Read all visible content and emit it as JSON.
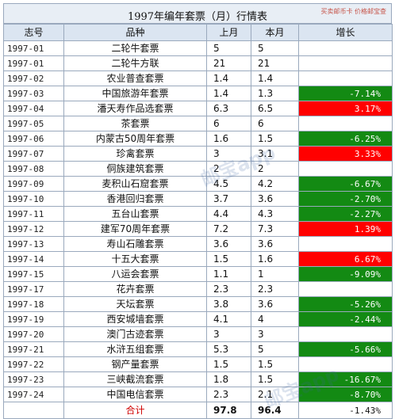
{
  "title": "1997年编年套票（月）行情表",
  "stamp": "买卖邮币卡 价格邮宝查",
  "watermark": "邮宝app",
  "colors": {
    "down": "#138a13",
    "up": "#ff0000",
    "header_bg": "#dbe5f1",
    "total_label": "#d00000"
  },
  "columns": [
    "志号",
    "品种",
    "上月",
    "本月",
    "增长"
  ],
  "rows": [
    {
      "code": "1997-01",
      "name": "二轮牛套票",
      "prev": "5",
      "curr": "5",
      "change": "",
      "trend": ""
    },
    {
      "code": "1997-01",
      "name": "二轮牛方联",
      "prev": "21",
      "curr": "21",
      "change": "",
      "trend": ""
    },
    {
      "code": "1997-02",
      "name": "农业普查套票",
      "prev": "1.4",
      "curr": "1.4",
      "change": "",
      "trend": ""
    },
    {
      "code": "1997-03",
      "name": "中国旅游年套票",
      "prev": "1.4",
      "curr": "1.3",
      "change": "-7.14%",
      "trend": "neg"
    },
    {
      "code": "1997-04",
      "name": "潘天寿作品选套票",
      "prev": "6.3",
      "curr": "6.5",
      "change": "3.17%",
      "trend": "pos"
    },
    {
      "code": "1997-05",
      "name": "茶套票",
      "prev": "6",
      "curr": "6",
      "change": "",
      "trend": ""
    },
    {
      "code": "1997-06",
      "name": "内蒙古50周年套票",
      "prev": "1.6",
      "curr": "1.5",
      "change": "-6.25%",
      "trend": "neg"
    },
    {
      "code": "1997-07",
      "name": "珍禽套票",
      "prev": "3",
      "curr": "3.1",
      "change": "3.33%",
      "trend": "pos"
    },
    {
      "code": "1997-08",
      "name": "侗族建筑套票",
      "prev": "2",
      "curr": "2",
      "change": "",
      "trend": ""
    },
    {
      "code": "1997-09",
      "name": "麦积山石窟套票",
      "prev": "4.5",
      "curr": "4.2",
      "change": "-6.67%",
      "trend": "neg"
    },
    {
      "code": "1997-10",
      "name": "香港回归套票",
      "prev": "3.7",
      "curr": "3.6",
      "change": "-2.70%",
      "trend": "neg"
    },
    {
      "code": "1997-11",
      "name": "五台山套票",
      "prev": "4.4",
      "curr": "4.3",
      "change": "-2.27%",
      "trend": "neg"
    },
    {
      "code": "1997-12",
      "name": "建军70周年套票",
      "prev": "7.2",
      "curr": "7.3",
      "change": "1.39%",
      "trend": "pos"
    },
    {
      "code": "1997-13",
      "name": "寿山石雕套票",
      "prev": "3.6",
      "curr": "3.6",
      "change": "",
      "trend": ""
    },
    {
      "code": "1997-14",
      "name": "十五大套票",
      "prev": "1.5",
      "curr": "1.6",
      "change": "6.67%",
      "trend": "pos"
    },
    {
      "code": "1997-15",
      "name": "八运会套票",
      "prev": "1.1",
      "curr": "1",
      "change": "-9.09%",
      "trend": "neg"
    },
    {
      "code": "1997-17",
      "name": "花卉套票",
      "prev": "2.3",
      "curr": "2.3",
      "change": "",
      "trend": ""
    },
    {
      "code": "1997-18",
      "name": "天坛套票",
      "prev": "3.8",
      "curr": "3.6",
      "change": "-5.26%",
      "trend": "neg"
    },
    {
      "code": "1997-19",
      "name": "西安城墙套票",
      "prev": "4.1",
      "curr": "4",
      "change": "-2.44%",
      "trend": "neg"
    },
    {
      "code": "1997-20",
      "name": "澳门古迹套票",
      "prev": "3",
      "curr": "3",
      "change": "",
      "trend": ""
    },
    {
      "code": "1997-21",
      "name": "水浒五组套票",
      "prev": "5.3",
      "curr": "5",
      "change": "-5.66%",
      "trend": "neg"
    },
    {
      "code": "1997-22",
      "name": "钢产量套票",
      "prev": "1.5",
      "curr": "1.5",
      "change": "",
      "trend": ""
    },
    {
      "code": "1997-23",
      "name": "三峡截流套票",
      "prev": "1.8",
      "curr": "1.5",
      "change": "-16.67%",
      "trend": "neg"
    },
    {
      "code": "1997-24",
      "name": "中国电信套票",
      "prev": "2.3",
      "curr": "2.1",
      "change": "-8.70%",
      "trend": "neg"
    }
  ],
  "total": {
    "label": "合计",
    "prev": "97.8",
    "curr": "96.4",
    "change": "-1.43%"
  }
}
